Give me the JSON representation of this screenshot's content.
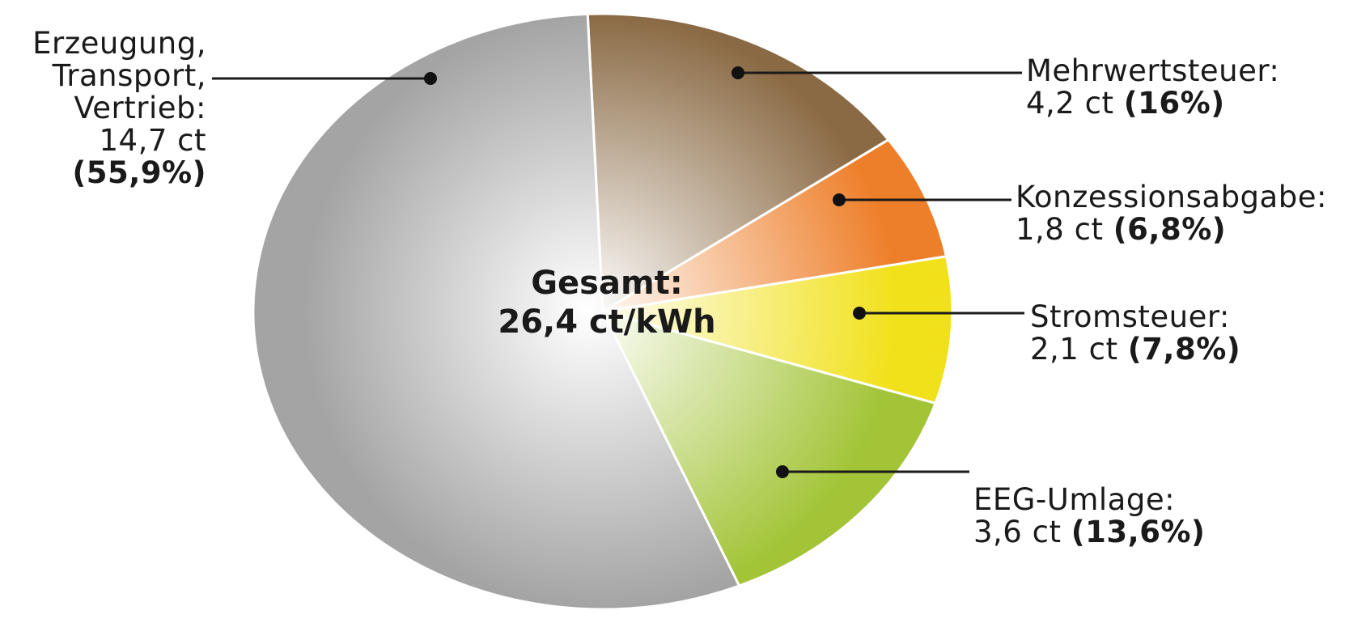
{
  "chart_data": {
    "type": "pie",
    "unit": "ct",
    "center_label": {
      "title": "Gesamt:",
      "value": "26,4 ct/kWh"
    },
    "slices": [
      {
        "label": "Mehrwertsteuer:",
        "value": 4.2,
        "value_text": "4,2 ct",
        "percent_text": "(16%)",
        "color": "#8a6a44"
      },
      {
        "label": "Konzessionsabgabe:",
        "value": 1.8,
        "value_text": "1,8 ct",
        "percent_text": "(6,8%)",
        "color": "#ee7f2a"
      },
      {
        "label": "Stromsteuer:",
        "value": 2.1,
        "value_text": "2,1 ct",
        "percent_text": "(7,8%)",
        "color": "#f1e11a"
      },
      {
        "label": "EEG-Umlage:",
        "value": 3.6,
        "value_text": "3,6 ct",
        "percent_text": "(13,6%)",
        "color": "#a2c436"
      },
      {
        "label": "Erzeugung,\nTransport,\nVertrieb:",
        "value": 14.7,
        "value_text": "14,7 ct",
        "percent_text": "(55,9%)",
        "color": "#a4a4a4"
      }
    ]
  }
}
